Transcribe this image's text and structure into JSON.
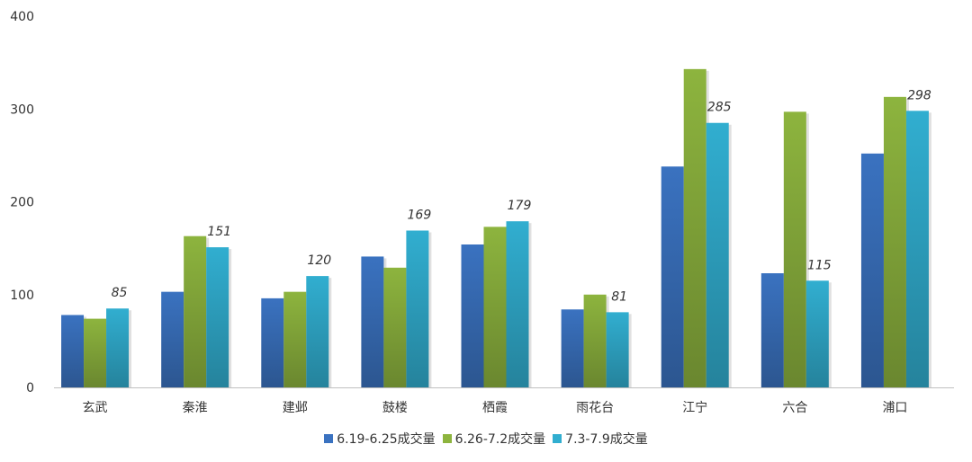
{
  "chart_data": {
    "type": "bar",
    "categories": [
      "玄武",
      "秦淮",
      "建邺",
      "鼓楼",
      "栖霞",
      "雨花台",
      "江宁",
      "六合",
      "浦口"
    ],
    "series": [
      {
        "name": "6.19-6.25成交量",
        "color": "#3a72c0",
        "values": [
          78,
          103,
          96,
          141,
          154,
          84,
          238,
          123,
          252
        ]
      },
      {
        "name": "6.26-7.2成交量",
        "color": "#8db43e",
        "values": [
          74,
          163,
          103,
          129,
          173,
          100,
          343,
          297,
          313
        ]
      },
      {
        "name": "7.3-7.9成交量",
        "color": "#31aed0",
        "values": [
          85,
          151,
          120,
          169,
          179,
          81,
          285,
          115,
          298
        ]
      }
    ],
    "data_label_series": 2,
    "yticks": [
      0,
      100,
      200,
      300,
      400
    ],
    "ylim": [
      0,
      400
    ],
    "legend_position": "bottom",
    "grid": false
  }
}
